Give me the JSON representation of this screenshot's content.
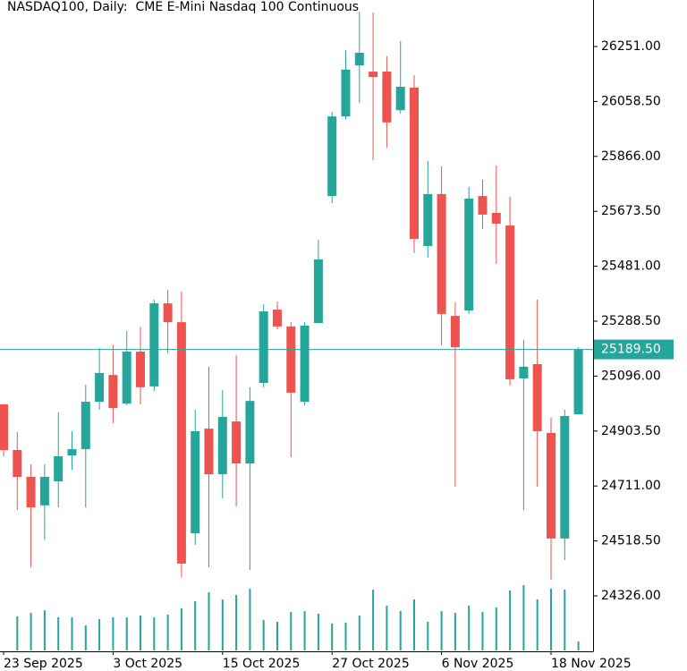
{
  "chart_data": {
    "type": "candlestick",
    "title": "NASDAQ100, Daily:  CME E-Mini Nasdaq 100 Continuous",
    "categories": [
      "23 Sep 2025",
      null,
      null,
      null,
      null,
      null,
      null,
      null,
      "3 Oct 2025",
      null,
      null,
      null,
      null,
      null,
      null,
      null,
      "15 Oct 2025",
      null,
      null,
      null,
      null,
      null,
      null,
      null,
      "27 Oct 2025",
      null,
      null,
      null,
      null,
      null,
      null,
      null,
      "6 Nov 2025",
      null,
      null,
      null,
      null,
      null,
      null,
      null,
      "18 Nov 2025",
      null,
      null
    ],
    "open": [
      24997,
      24837,
      24743,
      24643,
      24727,
      24818,
      24840,
      25006,
      25100,
      25000,
      25182,
      25060,
      25351,
      25285,
      24545,
      24912,
      24752,
      24937,
      24790,
      25072,
      25329,
      25270,
      25006,
      25282,
      25727,
      26006,
      26185,
      26163,
      26163,
      26028,
      26107,
      25552,
      25734,
      25307,
      25326,
      25727,
      25668,
      25624,
      25088,
      25138,
      24897,
      24527,
      24962
    ],
    "high": [
      24997,
      24900,
      24787,
      24787,
      24969,
      24903,
      25066,
      25194,
      25204,
      25254,
      25269,
      25364,
      25398,
      25392,
      24978,
      25129,
      25047,
      25169,
      25057,
      25348,
      25357,
      25285,
      25285,
      25574,
      26022,
      26238,
      26373,
      26370,
      26217,
      26270,
      26151,
      25850,
      25831,
      25354,
      25759,
      25784,
      25834,
      25724,
      25223,
      25364,
      24950,
      24978,
      25197
    ],
    "low": [
      24815,
      24627,
      24426,
      24523,
      24636,
      24768,
      24636,
      24978,
      24931,
      24994,
      24997,
      25044,
      25176,
      24392,
      24505,
      24426,
      24668,
      24639,
      24417,
      25057,
      25260,
      24812,
      24994,
      25282,
      25702,
      25997,
      26054,
      25853,
      25897,
      26016,
      25527,
      25511,
      25204,
      24708,
      25314,
      25611,
      25489,
      25063,
      24627,
      24708,
      24382,
      24451,
      24962
    ],
    "close": [
      24837,
      24743,
      24636,
      24743,
      24815,
      24840,
      25006,
      25107,
      24984,
      25182,
      25057,
      25351,
      25285,
      24439,
      24903,
      24752,
      24953,
      24790,
      25009,
      25323,
      25270,
      25038,
      25273,
      25505,
      26006,
      26170,
      26229,
      26144,
      25985,
      26110,
      25577,
      25734,
      25314,
      25197,
      25718,
      25662,
      25630,
      25085,
      25129,
      24903,
      24527,
      24956,
      25189.5
    ],
    "volume": [
      null,
      38,
      42,
      45,
      37,
      37,
      28,
      35,
      37,
      37,
      39,
      37,
      40,
      47,
      55,
      65,
      57,
      62,
      69,
      34,
      32,
      43,
      44,
      41,
      30,
      31,
      39,
      68,
      50,
      44,
      57,
      32,
      44,
      42,
      50,
      43,
      48,
      67,
      73,
      57,
      69,
      68,
      10
    ],
    "up_color": "#26a69a",
    "down_color": "#ef5350",
    "ylim": [
      24131.6,
      26414
    ],
    "yticks": [
      {
        "value": 24326,
        "label": "24326.00"
      },
      {
        "value": 24518.5,
        "label": "24518.50"
      },
      {
        "value": 24711,
        "label": "24711.00"
      },
      {
        "value": 24903.5,
        "label": "24903.50"
      },
      {
        "value": 25096,
        "label": "25096.00"
      },
      {
        "value": 25288.5,
        "label": "25288.50"
      },
      {
        "value": 25481,
        "label": "25481.00"
      },
      {
        "value": 25673.5,
        "label": "25673.50"
      },
      {
        "value": 25866,
        "label": "25866.00"
      },
      {
        "value": 26058.5,
        "label": "26058.50"
      },
      {
        "value": 26251,
        "label": "26251.00"
      }
    ],
    "current_price": {
      "value": 25189.5,
      "label": "25189.50"
    }
  }
}
